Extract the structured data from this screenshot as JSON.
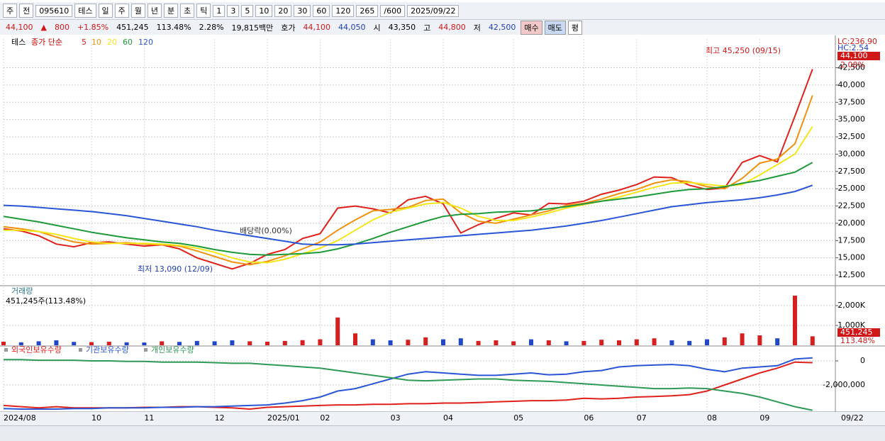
{
  "toolbar": {
    "row1": [
      "주",
      "전",
      "095610",
      "테스",
      "일",
      "주",
      "월",
      "년",
      "분",
      "초",
      "틱",
      "1",
      "3",
      "5",
      "10",
      "20",
      "30",
      "60",
      "120",
      "265",
      "/600",
      "2025/09/22"
    ],
    "row2": [
      "44,100",
      "▲",
      "800",
      "+1.85%",
      "451,245",
      "113.48%",
      "2.28%",
      "19,815백만",
      "호가",
      "44,100",
      "44,050",
      "시",
      "43,350",
      "고",
      "44,800",
      "저",
      "42,500",
      "매수",
      "매도",
      "평"
    ]
  },
  "chart_data": [
    {
      "type": "line",
      "title": "테스",
      "legend_prefix": "종가 단순",
      "ylim": [
        11070,
        46660
      ],
      "yticks": [
        {
          "value": 12500,
          "label": "12,500"
        },
        {
          "value": 15000,
          "label": "15,000"
        },
        {
          "value": 17500,
          "label": "17,500"
        },
        {
          "value": 20000,
          "label": "20,000"
        },
        {
          "value": 22500,
          "label": "22,500"
        },
        {
          "value": 25000,
          "label": "25,000"
        },
        {
          "value": 27500,
          "label": "27,500"
        },
        {
          "value": 30000,
          "label": "30,000"
        },
        {
          "value": 32500,
          "label": "32,500"
        },
        {
          "value": 35000,
          "label": "35,000"
        },
        {
          "value": 37500,
          "label": "37,500"
        },
        {
          "value": 40000,
          "label": "40,000"
        },
        {
          "value": 42500,
          "label": "42,500"
        }
      ],
      "grid": true,
      "annotations": [
        "LC:236.90",
        "HC:2.54",
        "44,100",
        "2.08%",
        "최고 45,250 (09/15)",
        "최저 13,090 (12/09)",
        "배당락(0.00%)"
      ],
      "series": [
        {
          "name": "5",
          "color": "#e0201b",
          "values": [
            19200,
            18900,
            18200,
            17000,
            16600,
            17200,
            17300,
            17000,
            16700,
            16900,
            16300,
            15000,
            14200,
            13400,
            14200,
            15500,
            16200,
            17800,
            18500,
            22200,
            22500,
            22100,
            21500,
            23400,
            23900,
            22800,
            18600,
            19800,
            20700,
            21500,
            21200,
            22900,
            22800,
            23200,
            24200,
            24800,
            25600,
            26700,
            26600,
            25500,
            24900,
            25100,
            28800,
            29800,
            28900,
            35500,
            42300
          ]
        },
        {
          "name": "10",
          "color": "#f0900f",
          "values": [
            19500,
            19200,
            18800,
            18000,
            17300,
            17000,
            17100,
            17200,
            17000,
            16900,
            16700,
            16000,
            15200,
            14400,
            14000,
            14500,
            15300,
            16300,
            17300,
            19000,
            20500,
            21800,
            22000,
            22300,
            23300,
            23500,
            21500,
            20300,
            20000,
            20600,
            21200,
            21800,
            22600,
            22900,
            23500,
            24300,
            24900,
            25800,
            26300,
            26000,
            25300,
            25000,
            26500,
            28700,
            29300,
            31500,
            38500
          ]
        },
        {
          "name": "20",
          "color": "#f5e61a",
          "values": [
            19000,
            19000,
            18800,
            18400,
            17800,
            17300,
            17100,
            17100,
            17100,
            17000,
            16800,
            16400,
            15800,
            15000,
            14400,
            14300,
            14800,
            15600,
            16400,
            17500,
            19000,
            20500,
            21600,
            22200,
            22800,
            23000,
            22200,
            21000,
            20400,
            20400,
            20900,
            21500,
            22200,
            22700,
            23200,
            23800,
            24500,
            25200,
            25800,
            25900,
            25600,
            25400,
            25600,
            27000,
            28500,
            30000,
            34000
          ]
        },
        {
          "name": "60",
          "color": "#1e9a3a",
          "values": [
            21000,
            20600,
            20200,
            19700,
            19200,
            18700,
            18300,
            17900,
            17600,
            17300,
            17100,
            16700,
            16200,
            15800,
            15500,
            15400,
            15500,
            15600,
            15800,
            16300,
            17000,
            17800,
            18700,
            19500,
            20300,
            21000,
            21300,
            21400,
            21600,
            21700,
            21800,
            22100,
            22400,
            22800,
            23200,
            23500,
            23800,
            24200,
            24600,
            24900,
            25000,
            25300,
            25800,
            26200,
            26800,
            27400,
            28800
          ]
        },
        {
          "name": "120",
          "color": "#2a56d6",
          "values": [
            22600,
            22500,
            22300,
            22100,
            21900,
            21700,
            21400,
            21100,
            20700,
            20300,
            19900,
            19500,
            19000,
            18600,
            18200,
            17800,
            17400,
            17000,
            16900,
            16900,
            17000,
            17200,
            17400,
            17600,
            17800,
            18000,
            18200,
            18400,
            18600,
            18800,
            19000,
            19300,
            19600,
            20000,
            20400,
            20900,
            21400,
            21900,
            22400,
            22700,
            23000,
            23200,
            23400,
            23700,
            24100,
            24600,
            25500
          ]
        }
      ]
    },
    {
      "type": "bar",
      "title": "거래량",
      "subtitle": "451,245주(113.48%)",
      "color": "#d62020",
      "down_color": "#1f47c8",
      "ylim": [
        0,
        2928000
      ],
      "yticks": [
        {
          "value": 1000000,
          "label": "1,000K"
        },
        {
          "value": 2000000,
          "label": "2,000K"
        }
      ],
      "annotations": [
        "451,245",
        "113.48%"
      ],
      "values": [
        180000,
        150000,
        200000,
        250000,
        170000,
        160000,
        180000,
        150000,
        140000,
        200000,
        170000,
        220000,
        200000,
        250000,
        200000,
        180000,
        220000,
        260000,
        300000,
        1400000,
        600000,
        300000,
        250000,
        280000,
        400000,
        300000,
        350000,
        220000,
        250000,
        200000,
        300000,
        250000,
        200000,
        220000,
        280000,
        250000,
        300000,
        350000,
        250000,
        220000,
        300000,
        400000,
        600000,
        500000,
        350000,
        2500000,
        451245
      ]
    },
    {
      "type": "line",
      "ylim": [
        -4176000,
        941000
      ],
      "yticks": [
        0,
        {
          "value": -2000000,
          "label": "-2,000,000"
        }
      ],
      "annotations": [
        "09/22"
      ],
      "categories": [
        "2024/08",
        null,
        null,
        null,
        null,
        "10",
        null,
        null,
        "11",
        null,
        null,
        null,
        "12",
        null,
        null,
        "2025/01",
        null,
        null,
        "02",
        null,
        null,
        null,
        "03",
        null,
        null,
        "04",
        null,
        null,
        null,
        "05",
        null,
        null,
        null,
        "06",
        null,
        null,
        "07",
        null,
        null,
        null,
        "08",
        null,
        null,
        "09",
        null,
        null,
        null
      ],
      "series": [
        {
          "name": "외국인보유수량",
          "color": "#e0201b",
          "values": [
            -3700000,
            -3800000,
            -3900000,
            -3800000,
            -3900000,
            -3900000,
            -3900000,
            -3900000,
            -3850000,
            -3850000,
            -3800000,
            -3800000,
            -3850000,
            -3900000,
            -4000000,
            -3850000,
            -3800000,
            -3750000,
            -3700000,
            -3650000,
            -3650000,
            -3600000,
            -3600000,
            -3550000,
            -3550000,
            -3500000,
            -3500000,
            -3450000,
            -3400000,
            -3350000,
            -3300000,
            -3300000,
            -3250000,
            -3100000,
            -3150000,
            -3100000,
            -3000000,
            -2950000,
            -2900000,
            -2800000,
            -2500000,
            -2000000,
            -1500000,
            -1000000,
            -600000,
            -100000,
            -150000
          ]
        },
        {
          "name": "기관보유수량",
          "color": "#2a56d6",
          "values": [
            -3950000,
            -4000000,
            -4000000,
            -4000000,
            -3950000,
            -3950000,
            -3900000,
            -3900000,
            -3900000,
            -3850000,
            -3850000,
            -3800000,
            -3800000,
            -3750000,
            -3700000,
            -3650000,
            -3500000,
            -3300000,
            -3000000,
            -2500000,
            -2300000,
            -1900000,
            -1500000,
            -1100000,
            -900000,
            -1000000,
            -1100000,
            -1200000,
            -1200000,
            -1100000,
            -1000000,
            -1150000,
            -1100000,
            -900000,
            -800000,
            -500000,
            -400000,
            -350000,
            -300000,
            -400000,
            -700000,
            -900000,
            -600000,
            -500000,
            -400000,
            150000,
            250000
          ]
        },
        {
          "name": "개인보유수량",
          "color": "#2e9a55",
          "values": [
            100000,
            100000,
            50000,
            50000,
            50000,
            0,
            0,
            -50000,
            -50000,
            -100000,
            -100000,
            -100000,
            -150000,
            -200000,
            -200000,
            -300000,
            -400000,
            -500000,
            -600000,
            -800000,
            -1000000,
            -1200000,
            -1400000,
            -1600000,
            -1650000,
            -1600000,
            -1550000,
            -1500000,
            -1500000,
            -1600000,
            -1650000,
            -1700000,
            -1800000,
            -1900000,
            -2000000,
            -2100000,
            -2200000,
            -2300000,
            -2300000,
            -2250000,
            -2300000,
            -2500000,
            -2700000,
            -3000000,
            -3400000,
            -3800000,
            -4100000
          ]
        }
      ]
    }
  ]
}
